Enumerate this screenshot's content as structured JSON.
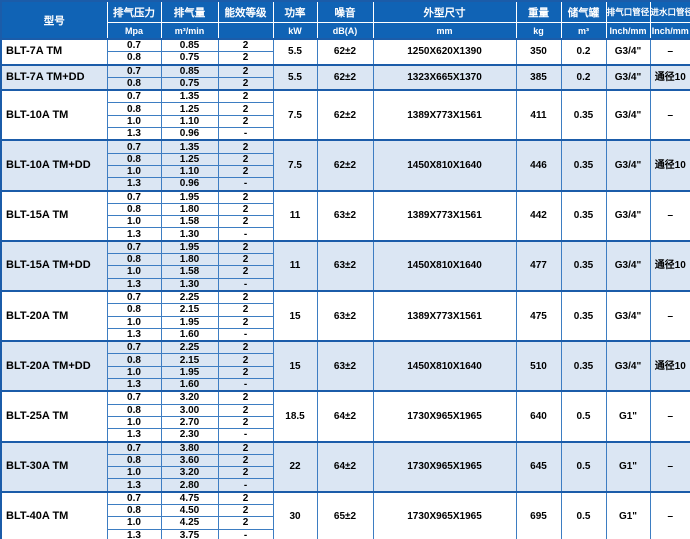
{
  "theme": {
    "header_bg": "#1063b5",
    "header_text": "#ffffff",
    "grid_outer": "#1b5ca9",
    "grid_inner": "#3d7dc2",
    "tint_row_bg": "#dbe6f3",
    "plain_row_bg": "#ffffff",
    "text_color": "#000000"
  },
  "table": {
    "header": {
      "model_label": "型号",
      "columns": [
        {
          "label": "排气压力",
          "unit": "Mpa"
        },
        {
          "label": "排气量",
          "unit": "m³/min"
        },
        {
          "label": "能效等级",
          "unit": ""
        },
        {
          "label": "功率",
          "unit": "kW"
        },
        {
          "label": "噪音",
          "unit": "dB(A)"
        },
        {
          "label": "外型尺寸",
          "unit": "mm"
        },
        {
          "label": "重量",
          "unit": "kg"
        },
        {
          "label": "储气罐",
          "unit": "m³"
        },
        {
          "label": "排气口管径",
          "unit": "Inch/mm"
        },
        {
          "label": "进水口管径",
          "unit": "Inch/mm"
        }
      ]
    },
    "groups": [
      {
        "model": "BLT-7A TM",
        "tint": false,
        "rows": [
          [
            "0.7",
            "0.85",
            "2"
          ],
          [
            "0.8",
            "0.75",
            "2"
          ]
        ],
        "power": "5.5",
        "noise": "62±2",
        "dimensions": "1250X620X1390",
        "weight": "350",
        "tank": "0.2",
        "outlet": "G3/4\"",
        "inlet": "–"
      },
      {
        "model": "BLT-7A TM+DD",
        "tint": true,
        "rows": [
          [
            "0.7",
            "0.85",
            "2"
          ],
          [
            "0.8",
            "0.75",
            "2"
          ]
        ],
        "power": "5.5",
        "noise": "62±2",
        "dimensions": "1323X665X1370",
        "weight": "385",
        "tank": "0.2",
        "outlet": "G3/4\"",
        "inlet": "通径10"
      },
      {
        "model": "BLT-10A TM",
        "tint": false,
        "rows": [
          [
            "0.7",
            "1.35",
            "2"
          ],
          [
            "0.8",
            "1.25",
            "2"
          ],
          [
            "1.0",
            "1.10",
            "2"
          ],
          [
            "1.3",
            "0.96",
            "-"
          ]
        ],
        "power": "7.5",
        "noise": "62±2",
        "dimensions": "1389X773X1561",
        "weight": "411",
        "tank": "0.35",
        "outlet": "G3/4\"",
        "inlet": "–"
      },
      {
        "model": "BLT-10A TM+DD",
        "tint": true,
        "rows": [
          [
            "0.7",
            "1.35",
            "2"
          ],
          [
            "0.8",
            "1.25",
            "2"
          ],
          [
            "1.0",
            "1.10",
            "2"
          ],
          [
            "1.3",
            "0.96",
            "-"
          ]
        ],
        "power": "7.5",
        "noise": "62±2",
        "dimensions": "1450X810X1640",
        "weight": "446",
        "tank": "0.35",
        "outlet": "G3/4\"",
        "inlet": "通径10"
      },
      {
        "model": "BLT-15A TM",
        "tint": false,
        "rows": [
          [
            "0.7",
            "1.95",
            "2"
          ],
          [
            "0.8",
            "1.80",
            "2"
          ],
          [
            "1.0",
            "1.58",
            "2"
          ],
          [
            "1.3",
            "1.30",
            "-"
          ]
        ],
        "power": "11",
        "noise": "63±2",
        "dimensions": "1389X773X1561",
        "weight": "442",
        "tank": "0.35",
        "outlet": "G3/4\"",
        "inlet": "–"
      },
      {
        "model": "BLT-15A TM+DD",
        "tint": true,
        "rows": [
          [
            "0.7",
            "1.95",
            "2"
          ],
          [
            "0.8",
            "1.80",
            "2"
          ],
          [
            "1.0",
            "1.58",
            "2"
          ],
          [
            "1.3",
            "1.30",
            "-"
          ]
        ],
        "power": "11",
        "noise": "63±2",
        "dimensions": "1450X810X1640",
        "weight": "477",
        "tank": "0.35",
        "outlet": "G3/4\"",
        "inlet": "通径10"
      },
      {
        "model": "BLT-20A TM",
        "tint": false,
        "rows": [
          [
            "0.7",
            "2.25",
            "2"
          ],
          [
            "0.8",
            "2.15",
            "2"
          ],
          [
            "1.0",
            "1.95",
            "2"
          ],
          [
            "1.3",
            "1.60",
            "-"
          ]
        ],
        "power": "15",
        "noise": "63±2",
        "dimensions": "1389X773X1561",
        "weight": "475",
        "tank": "0.35",
        "outlet": "G3/4\"",
        "inlet": "–"
      },
      {
        "model": "BLT-20A TM+DD",
        "tint": true,
        "rows": [
          [
            "0.7",
            "2.25",
            "2"
          ],
          [
            "0.8",
            "2.15",
            "2"
          ],
          [
            "1.0",
            "1.95",
            "2"
          ],
          [
            "1.3",
            "1.60",
            "-"
          ]
        ],
        "power": "15",
        "noise": "63±2",
        "dimensions": "1450X810X1640",
        "weight": "510",
        "tank": "0.35",
        "outlet": "G3/4\"",
        "inlet": "通径10"
      },
      {
        "model": "BLT-25A TM",
        "tint": false,
        "rows": [
          [
            "0.7",
            "3.20",
            "2"
          ],
          [
            "0.8",
            "3.00",
            "2"
          ],
          [
            "1.0",
            "2.70",
            "2"
          ],
          [
            "1.3",
            "2.30",
            "-"
          ]
        ],
        "power": "18.5",
        "noise": "64±2",
        "dimensions": "1730X965X1965",
        "weight": "640",
        "tank": "0.5",
        "outlet": "G1\"",
        "inlet": "–"
      },
      {
        "model": "BLT-30A TM",
        "tint": true,
        "rows": [
          [
            "0.7",
            "3.80",
            "2"
          ],
          [
            "0.8",
            "3.60",
            "2"
          ],
          [
            "1.0",
            "3.20",
            "2"
          ],
          [
            "1.3",
            "2.80",
            "-"
          ]
        ],
        "power": "22",
        "noise": "64±2",
        "dimensions": "1730X965X1965",
        "weight": "645",
        "tank": "0.5",
        "outlet": "G1\"",
        "inlet": "–"
      },
      {
        "model": "BLT-40A TM",
        "tint": false,
        "rows": [
          [
            "0.7",
            "4.75",
            "2"
          ],
          [
            "0.8",
            "4.50",
            "2"
          ],
          [
            "1.0",
            "4.25",
            "2"
          ],
          [
            "1.3",
            "3.75",
            "-"
          ]
        ],
        "power": "30",
        "noise": "65±2",
        "dimensions": "1730X965X1965",
        "weight": "695",
        "tank": "0.5",
        "outlet": "G1\"",
        "inlet": "–"
      }
    ]
  }
}
